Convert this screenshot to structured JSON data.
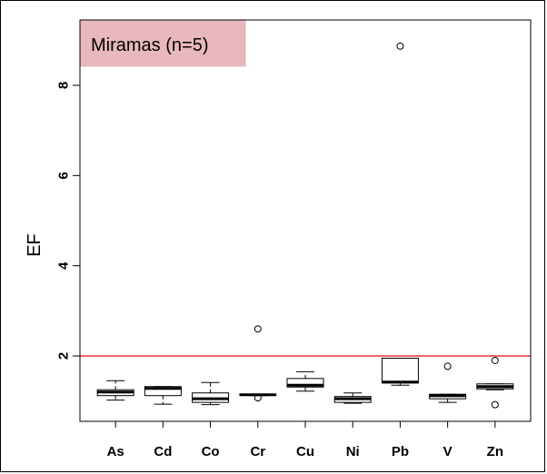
{
  "chart_data": {
    "type": "boxplot",
    "title": "",
    "label_box": {
      "text": "Miramas (n=5)",
      "color": "#e8b8bc"
    },
    "xlabel": "",
    "ylabel": "EF",
    "ylim": [
      0.55,
      9.45
    ],
    "yticks": [
      2,
      4,
      6,
      8
    ],
    "reference_line": {
      "y": 2,
      "color": "#e8342e"
    },
    "box_stroke": "#000000",
    "categories": [
      "As",
      "Cd",
      "Co",
      "Cr",
      "Cu",
      "Ni",
      "Pb",
      "V",
      "Zn"
    ],
    "boxes": [
      {
        "name": "As",
        "whisker_low": 1.02,
        "q1": 1.12,
        "median": 1.2,
        "q3": 1.25,
        "whisker_high": 1.45,
        "outliers": []
      },
      {
        "name": "Cd",
        "whisker_low": 0.93,
        "q1": 1.12,
        "median": 1.28,
        "q3": 1.32,
        "whisker_high": 1.32,
        "outliers": []
      },
      {
        "name": "Co",
        "whisker_low": 0.92,
        "q1": 0.97,
        "median": 1.05,
        "q3": 1.18,
        "whisker_high": 1.41,
        "outliers": []
      },
      {
        "name": "Cr",
        "whisker_low": 1.12,
        "q1": 1.13,
        "median": 1.14,
        "q3": 1.15,
        "whisker_high": 1.15,
        "outliers": [
          2.6,
          1.07
        ]
      },
      {
        "name": "Cu",
        "whisker_low": 1.22,
        "q1": 1.31,
        "median": 1.35,
        "q3": 1.5,
        "whisker_high": 1.65,
        "outliers": []
      },
      {
        "name": "Ni",
        "whisker_low": 0.95,
        "q1": 0.97,
        "median": 1.05,
        "q3": 1.1,
        "whisker_high": 1.18,
        "outliers": []
      },
      {
        "name": "Pb",
        "whisker_low": 1.35,
        "q1": 1.4,
        "median": 1.42,
        "q3": 1.95,
        "whisker_high": 1.95,
        "outliers": [
          8.87
        ]
      },
      {
        "name": "V",
        "whisker_low": 0.97,
        "q1": 1.05,
        "median": 1.12,
        "q3": 1.15,
        "whisker_high": 1.15,
        "outliers": [
          1.77
        ]
      },
      {
        "name": "Zn",
        "whisker_low": 1.25,
        "q1": 1.27,
        "median": 1.32,
        "q3": 1.38,
        "whisker_high": 1.38,
        "outliers": [
          1.9,
          0.92
        ]
      }
    ]
  }
}
